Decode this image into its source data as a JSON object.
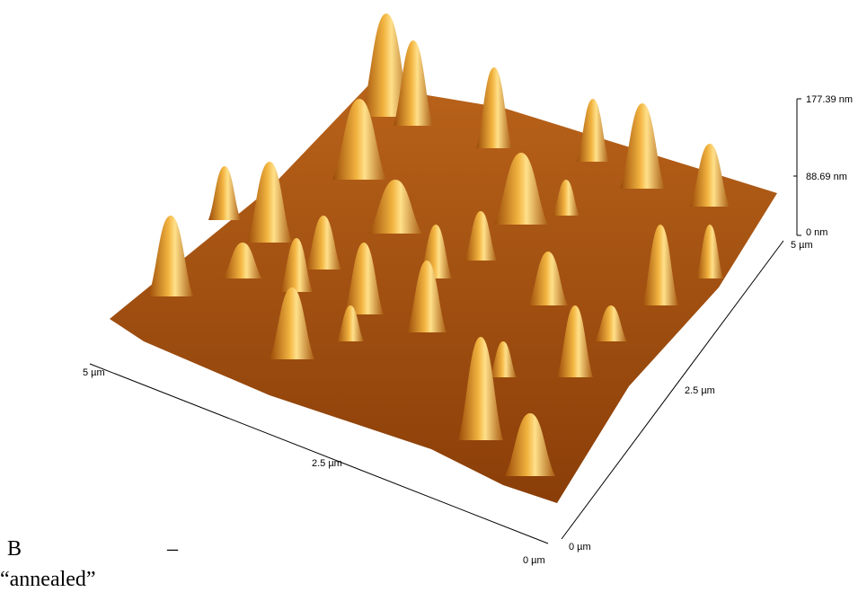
{
  "z_axis": {
    "ticks": [
      "177.39 nm",
      "88.69 nm",
      "0 nm"
    ]
  },
  "y_axis": {
    "ticks": [
      "5 µm",
      "2.5 µm",
      "0 µm"
    ]
  },
  "x_axis": {
    "ticks": [
      "5 µm",
      "2.5 µm",
      "0 µm"
    ]
  },
  "caption": {
    "label": "B",
    "dash": "–",
    "text": "“annealed”"
  }
}
